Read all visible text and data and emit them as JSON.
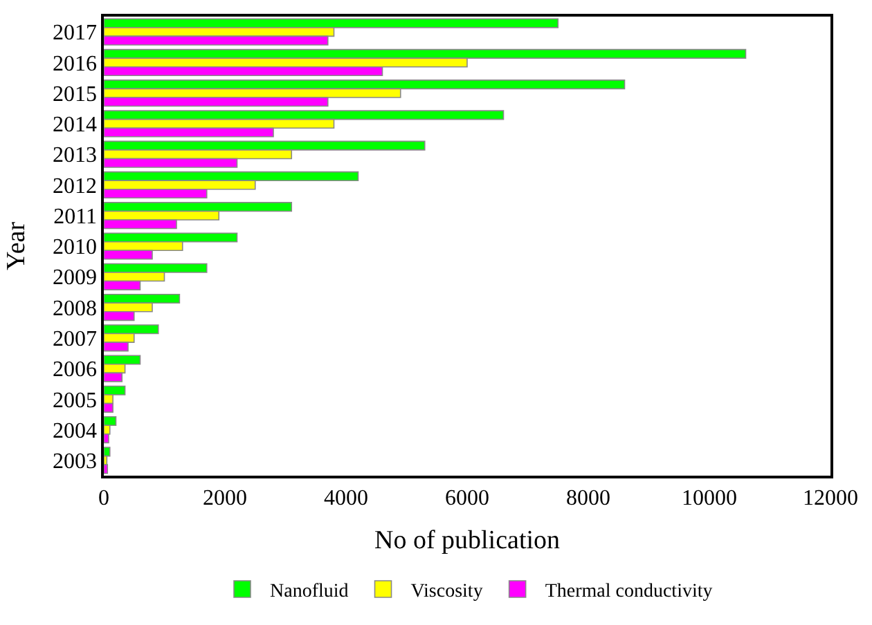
{
  "chart_data": {
    "type": "bar",
    "orientation": "horizontal",
    "xlabel": "No of publication",
    "ylabel": "Year",
    "categories": [
      "2017",
      "2016",
      "2015",
      "2014",
      "2013",
      "2012",
      "2011",
      "2010",
      "2009",
      "2008",
      "2007",
      "2006",
      "2005",
      "2004",
      "2003"
    ],
    "series": [
      {
        "name": "Nanofluid",
        "color": "#00ff00",
        "values": [
          7500,
          10600,
          8600,
          6600,
          5300,
          4200,
          3100,
          2200,
          1700,
          1250,
          900,
          600,
          350,
          200,
          100
        ]
      },
      {
        "name": "Viscosity",
        "color": "#ffff00",
        "values": [
          3800,
          6000,
          4900,
          3800,
          3100,
          2500,
          1900,
          1300,
          1000,
          800,
          500,
          350,
          150,
          100,
          50
        ]
      },
      {
        "name": "Thermal conductivity",
        "color": "#ff00ff",
        "values": [
          3700,
          4600,
          3700,
          2800,
          2200,
          1700,
          1200,
          800,
          600,
          500,
          400,
          300,
          150,
          80,
          60
        ]
      }
    ],
    "xlim": [
      0,
      12000
    ],
    "xticks": [
      0,
      2000,
      4000,
      6000,
      8000,
      10000,
      12000
    ],
    "legend": "bottom"
  }
}
